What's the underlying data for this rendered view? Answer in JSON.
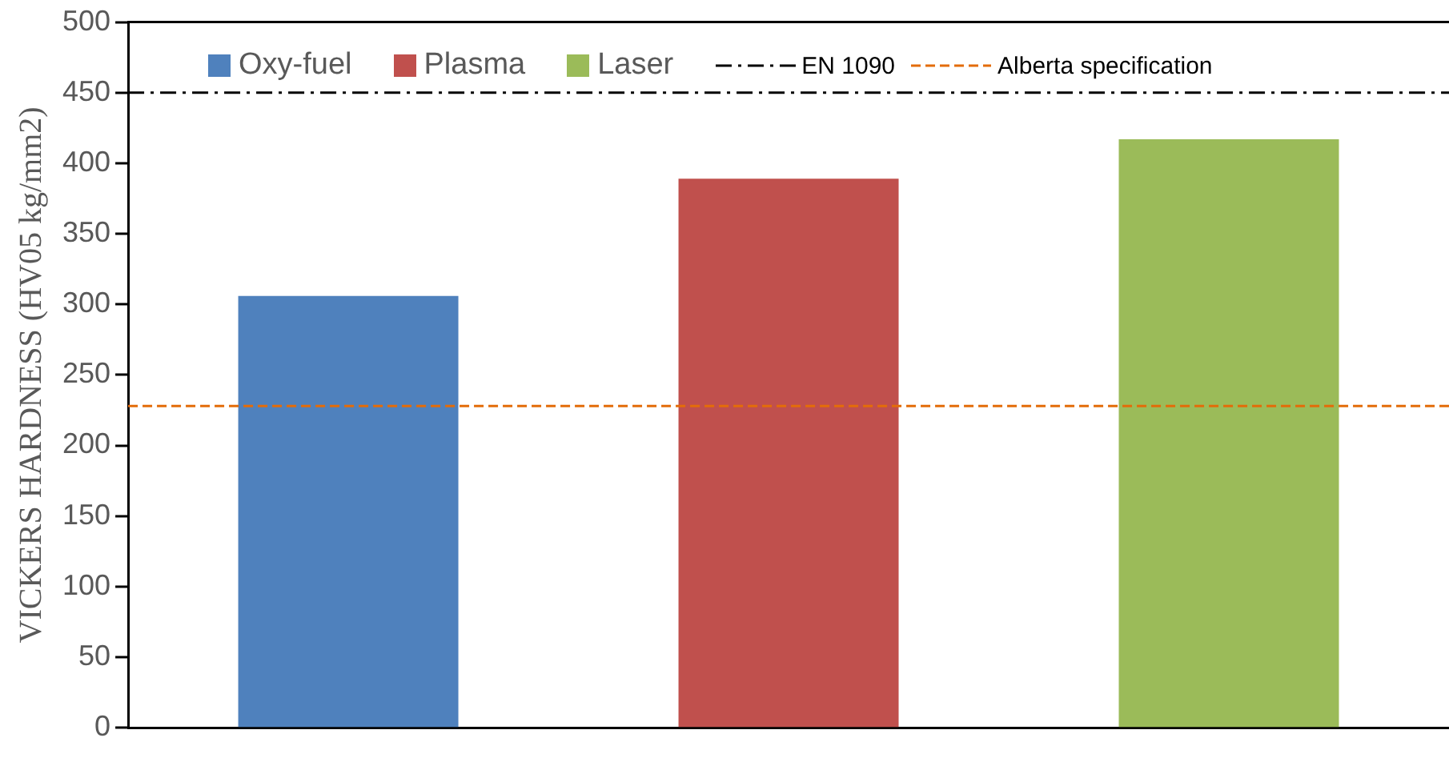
{
  "chart_data": {
    "type": "bar",
    "ylabel": "VICKERS HARDNESS (HV05 kg/mm2)",
    "categories": [
      null,
      null,
      null
    ],
    "series": [
      {
        "name": "Oxy-fuel",
        "color": "#4f81bd",
        "values": [
          306,
          null,
          null
        ]
      },
      {
        "name": "Plasma",
        "color": "#c0504d",
        "values": [
          null,
          389,
          null
        ]
      },
      {
        "name": "Laser",
        "color": "#9bbb59",
        "values": [
          null,
          null,
          417
        ]
      }
    ],
    "ylim": [
      0,
      500
    ],
    "yticks": [
      0,
      50,
      100,
      150,
      200,
      250,
      300,
      350,
      400,
      450,
      500
    ],
    "ref_lines": [
      {
        "axis": "y",
        "value": 450,
        "label": "EN 1090",
        "color": "#000000",
        "line_style": "dashdot"
      },
      {
        "axis": "y",
        "value": 228,
        "label": "Alberta specification",
        "color": "#e36c09",
        "line_style": "dashed"
      }
    ],
    "grid": false,
    "legend": "top"
  }
}
